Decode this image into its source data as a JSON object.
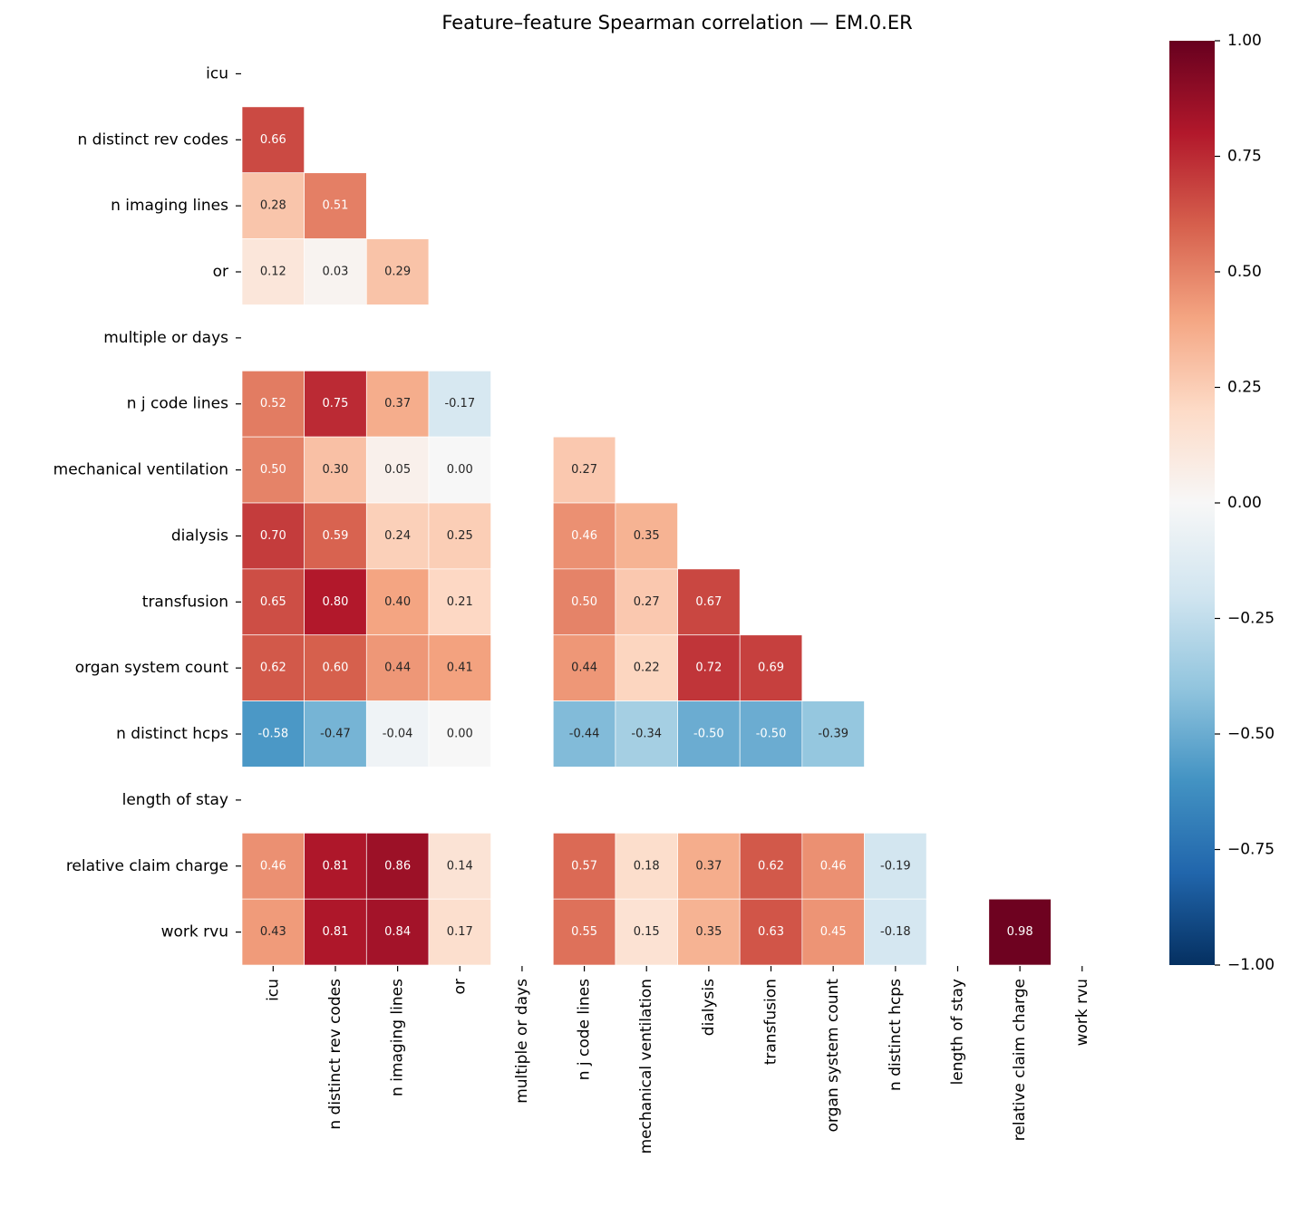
{
  "chart_data": {
    "type": "heatmap",
    "title": "Feature–feature Spearman correlation — EM.0.ER",
    "categories": [
      "icu",
      "n distinct rev codes",
      "n imaging lines",
      "or",
      "multiple or days",
      "n j code lines",
      "mechanical ventilation",
      "dialysis",
      "transfusion",
      "organ system count",
      "n distinct hcps",
      "length of stay",
      "relative claim charge",
      "work rvu"
    ],
    "values": [
      [],
      [
        0.66
      ],
      [
        0.28,
        0.51
      ],
      [
        0.12,
        0.03,
        0.29
      ],
      [
        null,
        null,
        null,
        null
      ],
      [
        0.52,
        0.75,
        0.37,
        -0.17,
        null
      ],
      [
        0.5,
        0.3,
        0.05,
        0,
        null,
        0.27
      ],
      [
        0.7,
        0.59,
        0.24,
        0.25,
        null,
        0.46,
        0.35
      ],
      [
        0.65,
        0.8,
        0.4,
        0.21,
        null,
        0.5,
        0.27,
        0.67
      ],
      [
        0.62,
        0.6,
        0.44,
        0.41,
        null,
        0.44,
        0.22,
        0.72,
        0.69
      ],
      [
        -0.58,
        -0.47,
        -0.04,
        0,
        null,
        -0.44,
        -0.34,
        -0.5,
        -0.5,
        -0.39
      ],
      [
        null,
        null,
        null,
        null,
        null,
        null,
        null,
        null,
        null,
        null,
        null
      ],
      [
        0.46,
        0.81,
        0.86,
        0.14,
        null,
        0.57,
        0.18,
        0.37,
        0.62,
        0.46,
        -0.19,
        null
      ],
      [
        0.43,
        0.81,
        0.84,
        0.17,
        null,
        0.55,
        0.15,
        0.35,
        0.63,
        0.45,
        -0.18,
        null,
        0.98
      ]
    ],
    "value_labels": [
      [],
      [
        "0.66"
      ],
      [
        "0.28",
        "0.51"
      ],
      [
        "0.12",
        "0.03",
        "0.29"
      ],
      [
        null,
        null,
        null,
        null
      ],
      [
        "0.52",
        "0.75",
        "0.37",
        "-0.17",
        null
      ],
      [
        "0.50",
        "0.30",
        "0.05",
        "0.00",
        null,
        "0.27"
      ],
      [
        "0.70",
        "0.59",
        "0.24",
        "0.25",
        null,
        "0.46",
        "0.35"
      ],
      [
        "0.65",
        "0.80",
        "0.40",
        "0.21",
        null,
        "0.50",
        "0.27",
        "0.67"
      ],
      [
        "0.62",
        "0.60",
        "0.44",
        "0.41",
        null,
        "0.44",
        "0.22",
        "0.72",
        "0.69"
      ],
      [
        "-0.58",
        "-0.47",
        "-0.04",
        "0.00",
        null,
        "-0.44",
        "-0.34",
        "-0.50",
        "-0.50",
        "-0.39"
      ],
      [
        null,
        null,
        null,
        null,
        null,
        null,
        null,
        null,
        null,
        null,
        null
      ],
      [
        "0.46",
        "0.81",
        "0.86",
        "0.14",
        null,
        "0.57",
        "0.18",
        "0.37",
        "0.62",
        "0.46",
        "-0.19",
        null
      ],
      [
        "0.43",
        "0.81",
        "0.84",
        "0.17",
        null,
        "0.55",
        "0.15",
        "0.35",
        "0.63",
        "0.45",
        "-0.18",
        null,
        "0.98"
      ]
    ],
    "clim": [
      -1,
      1
    ],
    "cticks": [
      {
        "value": -1,
        "label": "−1.00"
      },
      {
        "value": -0.75,
        "label": "−0.75"
      },
      {
        "value": -0.5,
        "label": "−0.50"
      },
      {
        "value": -0.25,
        "label": "−0.25"
      },
      {
        "value": 0,
        "label": "0.00"
      },
      {
        "value": 0.25,
        "label": "0.25"
      },
      {
        "value": 0.5,
        "label": "0.50"
      },
      {
        "value": 0.75,
        "label": "0.75"
      },
      {
        "value": 1,
        "label": "1.00"
      }
    ],
    "colormap": [
      "#053061",
      "#2166ac",
      "#4393c3",
      "#92c5de",
      "#d1e5f0",
      "#f7f7f7",
      "#fddbc7",
      "#f4a582",
      "#d6604d",
      "#b2182b",
      "#67001f"
    ]
  }
}
